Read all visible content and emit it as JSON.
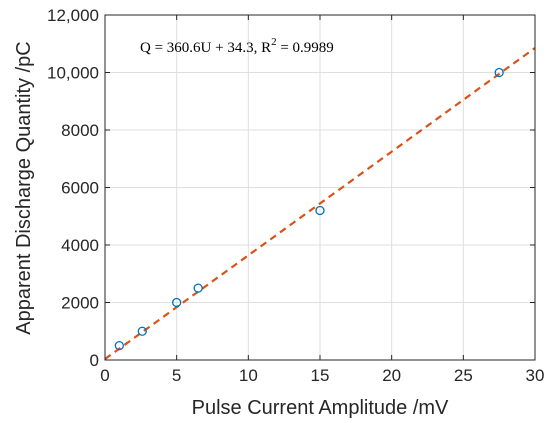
{
  "chart_data": {
    "type": "scatter",
    "xlabel": "Pulse Current Amplitude /mV",
    "ylabel": "Apparent Discharge Quantity /pC",
    "xlim": [
      0,
      30
    ],
    "ylim": [
      0,
      12000
    ],
    "xticks": [
      0,
      5,
      10,
      15,
      20,
      25,
      30
    ],
    "yticks": [
      0,
      2000,
      4000,
      6000,
      8000,
      10000,
      12000
    ],
    "xtick_labels": [
      "0",
      "5",
      "10",
      "15",
      "20",
      "25",
      "30"
    ],
    "ytick_labels": [
      "0",
      "2000",
      "4000",
      "6000",
      "8000",
      "10,000",
      "12,000"
    ],
    "grid": true,
    "series": [
      {
        "kind": "markers",
        "marker": "circle-open",
        "color": "#0072BD",
        "x": [
          1.0,
          2.6,
          5.0,
          6.5,
          15.0,
          27.5
        ],
        "y": [
          500,
          1000,
          2000,
          2500,
          5200,
          10000
        ]
      },
      {
        "kind": "fit-line",
        "style": "dashed",
        "color": "#D95319",
        "slope": 360.6,
        "intercept": 34.3,
        "x_range": [
          0,
          30
        ]
      }
    ],
    "annotation": {
      "eq_text": "Q = 360.6U + 34.3,  R",
      "sup_text": "2",
      "tail_text": " = 0.9989"
    }
  }
}
